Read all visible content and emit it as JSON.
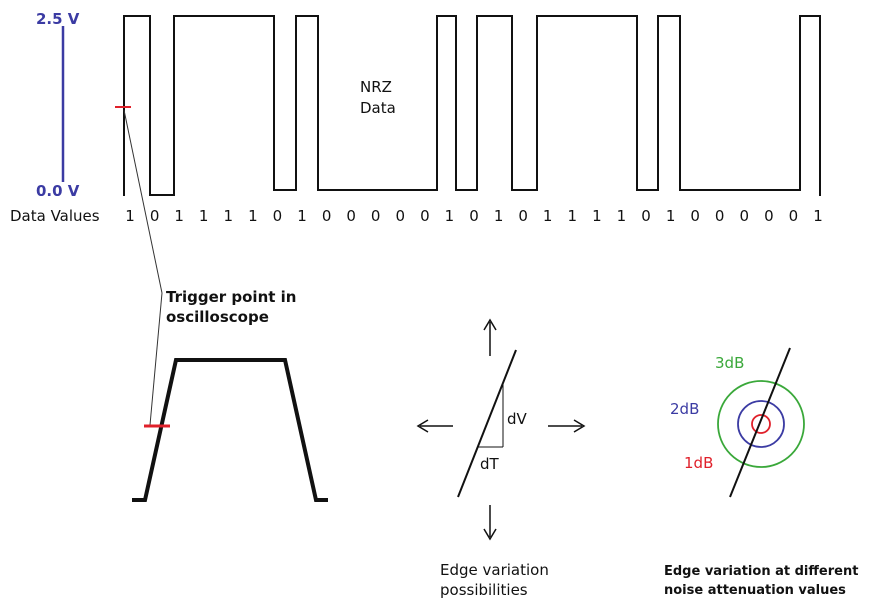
{
  "axis": {
    "high_label": "2.5 V",
    "low_label": "0.0 V",
    "color": "#3b3ba3"
  },
  "waveform": {
    "title_line1": "NRZ",
    "title_line2": "Data",
    "data_values_label": "Data Values",
    "bits": [
      "1",
      "0",
      "1",
      "1",
      "1",
      "1",
      "0",
      "1",
      "0",
      "0",
      "0",
      "0",
      "0",
      "1",
      "0",
      "1",
      "0",
      "1",
      "1",
      "1",
      "1",
      "0",
      "1",
      "0",
      "0",
      "0",
      "0",
      "0",
      "1"
    ]
  },
  "trigger": {
    "label_line1": "Trigger point in",
    "label_line2": "oscilloscope",
    "marker_color": "#e0202a"
  },
  "edge_variation": {
    "dv_label": "dV",
    "dt_label": "dT",
    "caption_line1": "Edge variation",
    "caption_line2": "possibilities"
  },
  "noise": {
    "label_3db": "3dB",
    "label_2db": "2dB",
    "label_1db": "1dB",
    "color_3db": "#3aa83a",
    "color_2db": "#3b3ba3",
    "color_1db": "#e0202a",
    "caption_line1": "Edge variation at different",
    "caption_line2": "noise attenuation values"
  }
}
